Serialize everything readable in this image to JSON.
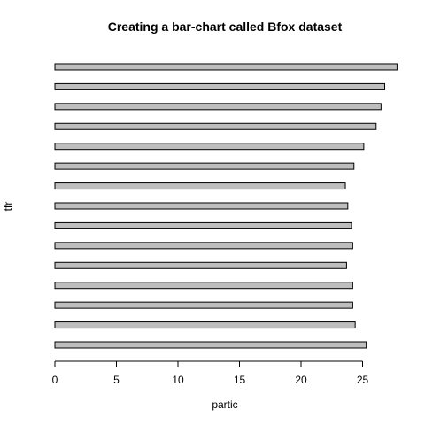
{
  "chart_data": {
    "type": "bar",
    "orientation": "horizontal",
    "title": "Creating a bar-chart called Bfox dataset",
    "xlabel": "partic",
    "ylabel": "tfr",
    "xlim": [
      0,
      28
    ],
    "x_ticks": [
      0,
      5,
      10,
      15,
      20,
      25
    ],
    "bar_color": "#bebebe",
    "values": [
      25.3,
      24.4,
      24.2,
      24.2,
      23.7,
      24.2,
      24.1,
      23.8,
      23.6,
      24.3,
      25.1,
      26.1,
      26.5,
      26.8,
      27.8
    ]
  }
}
